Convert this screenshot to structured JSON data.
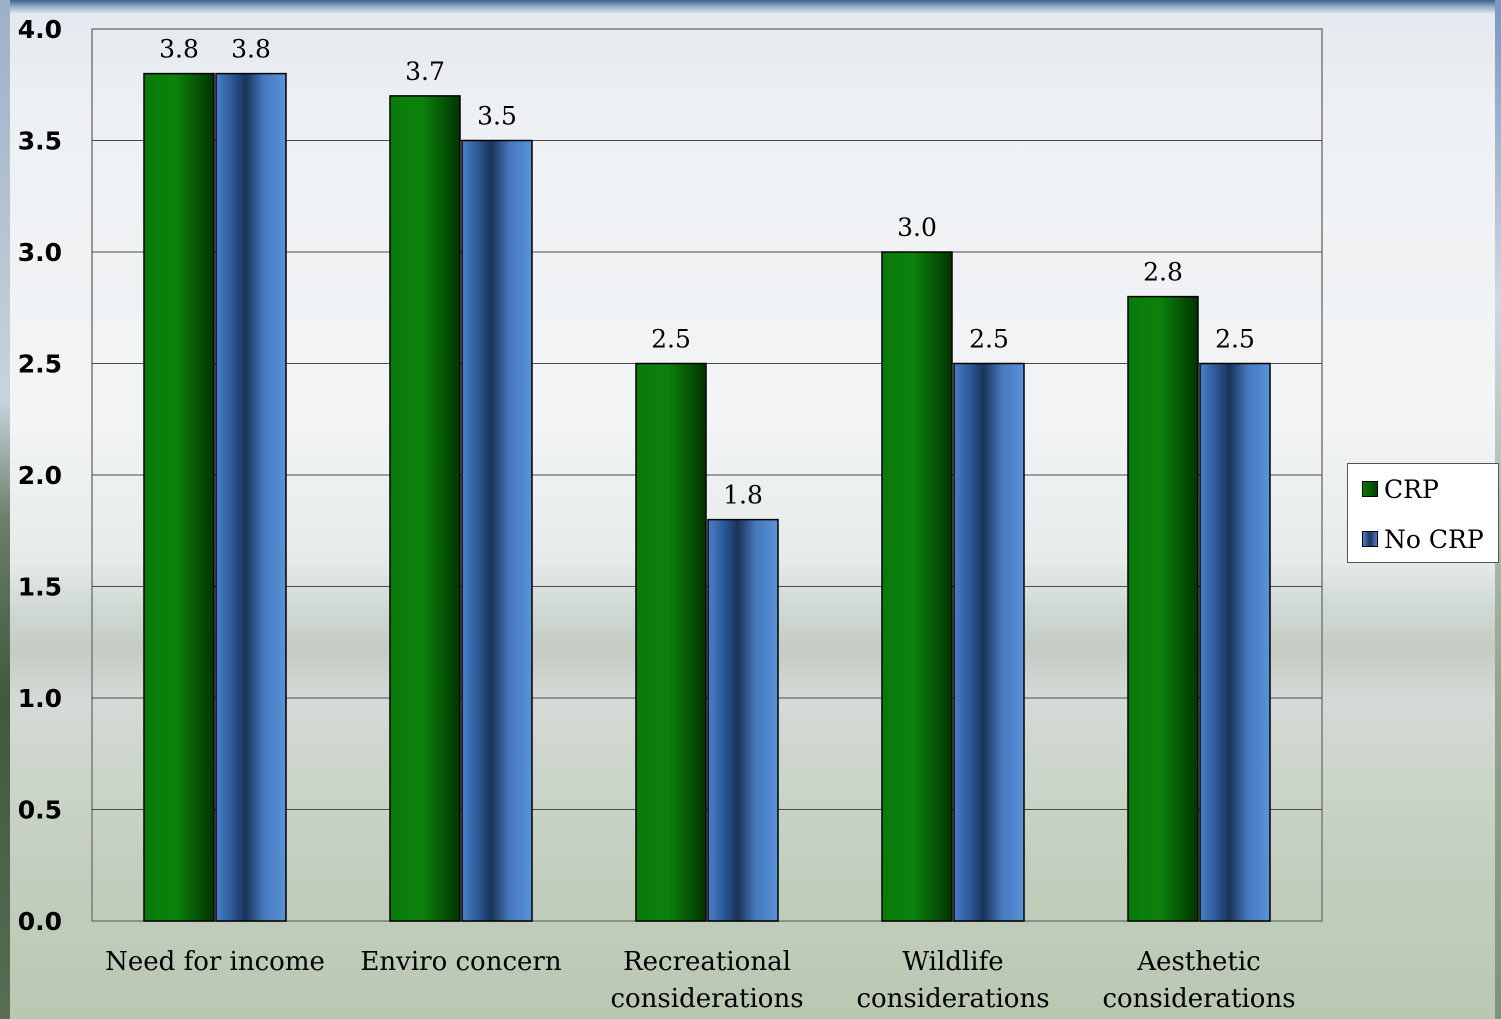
{
  "chart_data": {
    "type": "bar",
    "title": "",
    "xlabel": "",
    "ylabel": "",
    "ylim": [
      0,
      4
    ],
    "yticks": [
      "0.0",
      "0.5",
      "1.0",
      "1.5",
      "2.0",
      "2.5",
      "3.0",
      "3.5",
      "4.0"
    ],
    "grid": true,
    "legend_position": "right",
    "categories": [
      [
        "Need for income"
      ],
      [
        "Enviro concern"
      ],
      [
        "Recreational",
        "considerations"
      ],
      [
        "Wildlife",
        "considerations"
      ],
      [
        "Aesthetic",
        "considerations"
      ]
    ],
    "series": [
      {
        "name": "CRP",
        "color": "#0a7a0a",
        "values": [
          3.8,
          3.7,
          2.5,
          3.0,
          2.8
        ],
        "labels": [
          "3.8",
          "3.7",
          "2.5",
          "3.0",
          "2.8"
        ]
      },
      {
        "name": "No CRP",
        "color": "#4a7fc8",
        "values": [
          3.8,
          3.5,
          1.8,
          2.5,
          2.5
        ],
        "labels": [
          "3.8",
          "3.5",
          "1.8",
          "2.5",
          "2.5"
        ]
      }
    ]
  }
}
